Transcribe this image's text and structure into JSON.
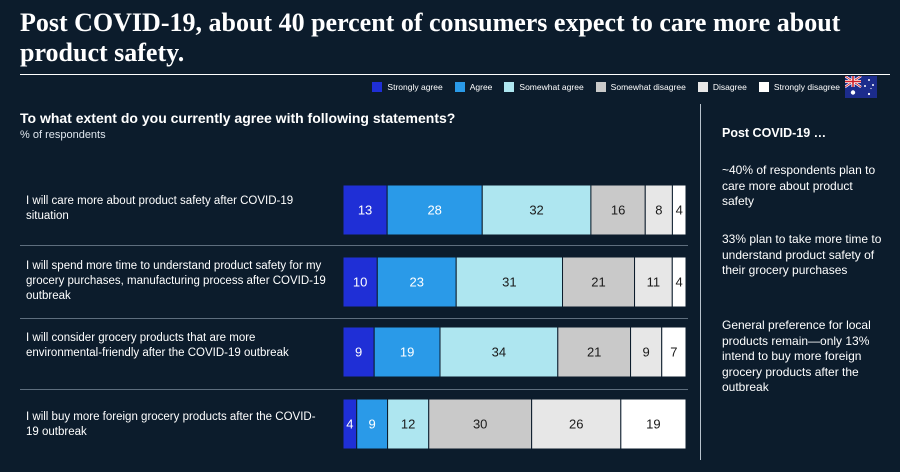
{
  "headline": "Post COVID-19, about 40 percent of consumers expect to care more about product safety.",
  "legend": [
    {
      "label": "Strongly agree",
      "color": "#1f2fd6"
    },
    {
      "label": "Agree",
      "color": "#2a9ae8"
    },
    {
      "label": "Somewhat agree",
      "color": "#aee6f0"
    },
    {
      "label": "Somewhat disagree",
      "color": "#c9c9c9"
    },
    {
      "label": "Disagree",
      "color": "#e7e7e7"
    },
    {
      "label": "Strongly disagree",
      "color": "#ffffff"
    }
  ],
  "flag": {
    "name": "australia-flag-icon",
    "colors": {
      "field": "#1c2c8c",
      "white": "#ffffff",
      "red": "#d0202a"
    }
  },
  "question": "To what extent do you currently agree with following statements?",
  "subtitle": "% of respondents",
  "rows": [
    {
      "label": "I will care more about product safety after COVID-19 situation"
    },
    {
      "label": "I will spend more time to understand product safety for my grocery purchases, manufacturing process after COVID-19 outbreak"
    },
    {
      "label": "I will consider grocery products that are more environmental-friendly after the COVID-19 outbreak"
    },
    {
      "label": "I will buy more foreign grocery products after the COVID-19 outbreak"
    }
  ],
  "chart_data": {
    "type": "bar",
    "orientation": "horizontal",
    "stacked": true,
    "categories": [
      "I will care more about product safety after COVID-19 situation",
      "I will spend more time to understand product safety for my grocery purchases, manufacturing process after COVID-19 outbreak",
      "I will consider grocery products that are more environmental-friendly after the COVID-19 outbreak",
      "I will buy more foreign grocery products after the COVID-19 outbreak"
    ],
    "series": [
      {
        "name": "Strongly agree",
        "values": [
          13,
          10,
          9,
          4
        ]
      },
      {
        "name": "Agree",
        "values": [
          28,
          23,
          19,
          9
        ]
      },
      {
        "name": "Somewhat agree",
        "values": [
          32,
          31,
          34,
          12
        ]
      },
      {
        "name": "Somewhat disagree",
        "values": [
          16,
          21,
          21,
          30
        ]
      },
      {
        "name": "Disagree",
        "values": [
          8,
          11,
          9,
          26
        ]
      },
      {
        "name": "Strongly disagree",
        "values": [
          4,
          4,
          7,
          19
        ]
      }
    ],
    "unit": "% of respondents",
    "xlim": [
      0,
      100
    ],
    "legend_position": "top-right",
    "grid": false
  },
  "sidebar": {
    "title": "Post COVID-19 …",
    "notes": [
      "~40% of respondents plan to care more about product safety",
      "33% plan to take more time to understand product safety of their grocery purchases",
      "General preference for local products remain—only 13% intend to buy more foreign grocery products after the outbreak"
    ]
  }
}
